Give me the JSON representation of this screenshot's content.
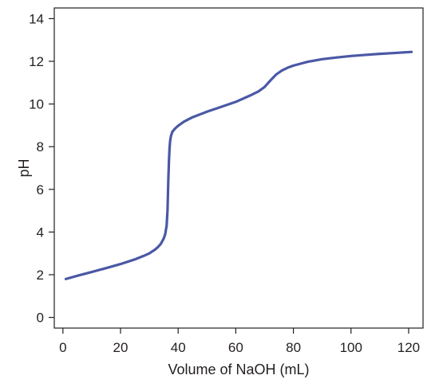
{
  "chart_data": {
    "type": "line",
    "title": "",
    "xlabel": "Volume of NaOH (mL)",
    "ylabel": "pH",
    "xlim": [
      -3,
      125
    ],
    "ylim": [
      -0.5,
      14.5
    ],
    "xticks": [
      0,
      20,
      40,
      60,
      80,
      100,
      120
    ],
    "yticks": [
      0,
      2,
      4,
      6,
      8,
      10,
      12,
      14
    ],
    "xtick_labels": [
      "0",
      "20",
      "40",
      "60",
      "80",
      "100",
      "120"
    ],
    "ytick_labels": [
      "0",
      "2",
      "4",
      "6",
      "8",
      "10",
      "12",
      "14"
    ],
    "grid": false,
    "legend": "none",
    "series_color": "#4a58a5",
    "series": [
      {
        "x": [
          1,
          5,
          10,
          15,
          20,
          25,
          28,
          30,
          32,
          33,
          34,
          35,
          35.5,
          36,
          36.3,
          36.6,
          36.8,
          37,
          37.2,
          37.5,
          38,
          39,
          40,
          42,
          45,
          50,
          55,
          60,
          65,
          68,
          70,
          72,
          74,
          76,
          78,
          80,
          85,
          90,
          95,
          100,
          105,
          110,
          115,
          121
        ],
        "y": [
          1.8,
          1.95,
          2.13,
          2.31,
          2.5,
          2.72,
          2.88,
          3.0,
          3.18,
          3.3,
          3.45,
          3.7,
          3.9,
          4.3,
          5.0,
          6.5,
          7.3,
          7.9,
          8.25,
          8.5,
          8.7,
          8.86,
          8.98,
          9.17,
          9.38,
          9.64,
          9.87,
          10.1,
          10.4,
          10.6,
          10.8,
          11.1,
          11.38,
          11.57,
          11.7,
          11.8,
          11.98,
          12.1,
          12.18,
          12.25,
          12.3,
          12.35,
          12.39,
          12.44
        ]
      }
    ]
  }
}
